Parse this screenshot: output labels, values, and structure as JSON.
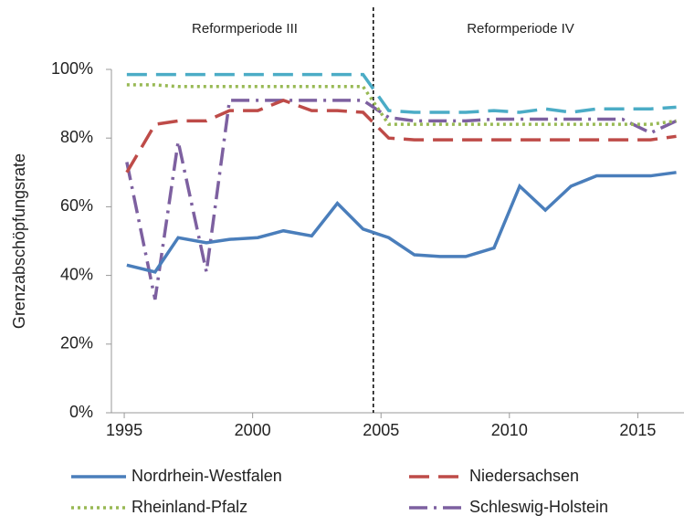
{
  "chart_data": {
    "type": "line",
    "annotations": [
      "Reformperiode III",
      "Reformperiode IV"
    ],
    "reference_line_x": 2004.7,
    "y_label": "Grenzabschöpfungsrate",
    "x": [
      1995.1,
      1996.2,
      1997.1,
      1998.2,
      1999.1,
      2000.2,
      2001.2,
      2002.3,
      2003.3,
      2004.3,
      2005.3,
      2006.3,
      2007.3,
      2008.3,
      2009.4,
      2010.4,
      2011.4,
      2012.4,
      2013.4,
      2014.4,
      2015.5,
      2016.5
    ],
    "series": [
      {
        "name": "Nordrhein-Westfalen",
        "color": "#4a7ebb",
        "style": "solid",
        "values": [
          43,
          41,
          51,
          49.5,
          50.5,
          51,
          53,
          51.5,
          61,
          53.5,
          51,
          46,
          45.5,
          45.5,
          48,
          66,
          59,
          66,
          69,
          69,
          69,
          70
        ]
      },
      {
        "name": "Niedersachsen",
        "color": "#be4b48",
        "style": "dashed",
        "values": [
          70,
          84,
          85,
          85,
          88,
          88,
          91,
          88,
          88,
          87.5,
          80,
          79.5,
          79.5,
          79.5,
          79.5,
          79.5,
          79.5,
          79.5,
          79.5,
          79.5,
          79.5,
          80.5
        ]
      },
      {
        "name": "Rheinland-Pfalz",
        "color": "#98b954",
        "style": "dotted",
        "values": [
          95.5,
          95.5,
          95,
          95,
          95,
          95,
          95,
          95,
          95,
          95,
          84,
          84,
          84,
          84,
          84,
          84,
          84,
          84,
          84,
          84,
          84,
          85
        ]
      },
      {
        "name": "Schleswig-Holstein",
        "color": "#7d60a0",
        "style": "dashdot",
        "values": [
          73,
          33,
          79,
          41,
          91,
          91,
          91,
          91,
          91,
          91,
          86,
          85,
          85,
          85,
          85.5,
          85.5,
          85.5,
          85.5,
          85.5,
          85.5,
          81.5,
          85
        ]
      },
      {
        "color": "#4bacc6",
        "style": "dashed",
        "values": [
          98.5,
          98.5,
          98.5,
          98.5,
          98.5,
          98.5,
          98.5,
          98.5,
          98.5,
          98.5,
          88,
          87.5,
          87.5,
          87.5,
          88,
          87.5,
          88.5,
          87.5,
          88.5,
          88.5,
          88.5,
          89
        ]
      }
    ],
    "xlim": [
      1994.5,
      2016.8
    ],
    "xticks": [
      1995,
      2000,
      2005,
      2010,
      2015
    ],
    "ylim": [
      0,
      100
    ],
    "yticks": [
      {
        "value": 0,
        "label": "0%"
      },
      {
        "value": 20,
        "label": "20%"
      },
      {
        "value": 40,
        "label": "40%"
      },
      {
        "value": 60,
        "label": "60%"
      },
      {
        "value": 80,
        "label": "80%"
      },
      {
        "value": 100,
        "label": "100%"
      }
    ],
    "grid": false,
    "legend": "bottom"
  }
}
